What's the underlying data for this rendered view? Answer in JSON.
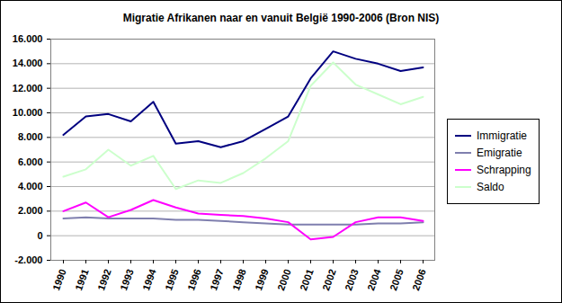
{
  "chart_data": {
    "type": "line",
    "title": "Migratie Afrikanen naar en vanuit België 1990-2006 (Bron NIS)",
    "categories": [
      "1990",
      "1991",
      "1992",
      "1993",
      "1994",
      "1995",
      "1996",
      "1997",
      "1998",
      "1999",
      "2000",
      "2001",
      "2002",
      "2003",
      "2004",
      "2005",
      "2006"
    ],
    "series": [
      {
        "name": "Immigratie",
        "color": "#000080",
        "values": [
          8200,
          9700,
          9900,
          9300,
          10900,
          7500,
          7700,
          7200,
          7700,
          8700,
          9700,
          12800,
          15000,
          14400,
          14000,
          13400,
          13700
        ]
      },
      {
        "name": "Emigratie",
        "color": "#7f7fae",
        "values": [
          1400,
          1500,
          1400,
          1400,
          1400,
          1300,
          1300,
          1200,
          1100,
          1000,
          900,
          900,
          900,
          900,
          1000,
          1000,
          1100
        ]
      },
      {
        "name": "Schrapping",
        "color": "#ff00ff",
        "values": [
          2000,
          2700,
          1500,
          2100,
          2900,
          2300,
          1800,
          1700,
          1600,
          1400,
          1100,
          -300,
          -100,
          1100,
          1500,
          1500,
          1200
        ]
      },
      {
        "name": "Saldo",
        "color": "#ccffcc",
        "values": [
          4800,
          5400,
          7000,
          5700,
          6500,
          3800,
          4500,
          4300,
          5100,
          6300,
          7700,
          12200,
          14100,
          12300,
          11500,
          10700,
          11300
        ]
      }
    ],
    "ylim": [
      -2000,
      16000
    ],
    "yticks": [
      {
        "value": -2000,
        "label": "-2.000"
      },
      0,
      {
        "value": 2000,
        "label": "2.000"
      },
      {
        "value": 4000,
        "label": "4.000"
      },
      {
        "value": 6000,
        "label": "6.000"
      },
      {
        "value": 8000,
        "label": "8.000"
      },
      {
        "value": 10000,
        "label": "10.000"
      },
      {
        "value": 12000,
        "label": "12.000"
      },
      {
        "value": 14000,
        "label": "14.000"
      },
      {
        "value": 16000,
        "label": "16.000"
      }
    ],
    "grid": true,
    "legend": "right"
  }
}
